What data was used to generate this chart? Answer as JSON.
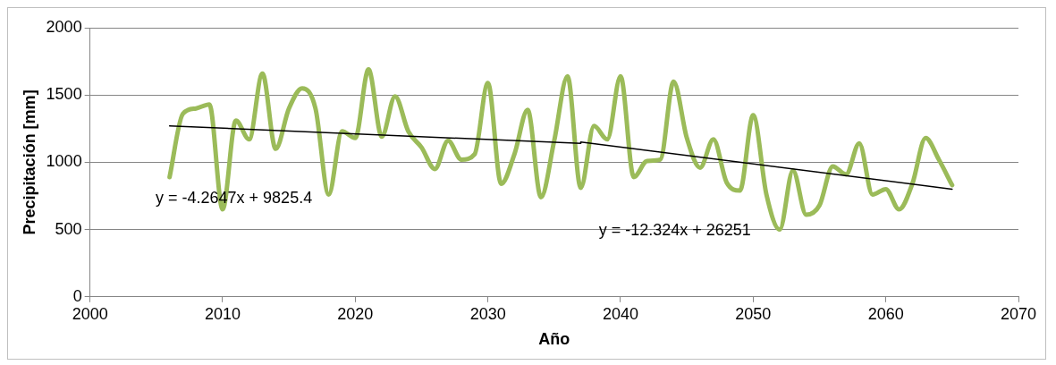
{
  "chart_data": {
    "type": "line",
    "xlabel": "Año",
    "ylabel": "Precipitación [mm]",
    "x": [
      2006,
      2007,
      2008,
      2009,
      2010,
      2011,
      2012,
      2013,
      2014,
      2015,
      2016,
      2017,
      2018,
      2019,
      2020,
      2021,
      2022,
      2023,
      2024,
      2025,
      2026,
      2027,
      2028,
      2029,
      2030,
      2031,
      2032,
      2033,
      2034,
      2035,
      2036,
      2037,
      2038,
      2039,
      2040,
      2041,
      2042,
      2043,
      2044,
      2045,
      2046,
      2047,
      2048,
      2049,
      2050,
      2051,
      2052,
      2053,
      2054,
      2055,
      2056,
      2057,
      2058,
      2059,
      2060,
      2061,
      2062,
      2063,
      2064,
      2065
    ],
    "series": [
      {
        "color": "#9bbb59",
        "values": [
          890,
          1360,
          1400,
          1430,
          650,
          1310,
          1170,
          1660,
          1100,
          1400,
          1550,
          1400,
          760,
          1230,
          1180,
          1690,
          1190,
          1490,
          1230,
          1110,
          950,
          1160,
          1020,
          1060,
          1590,
          840,
          1060,
          1390,
          740,
          1160,
          1640,
          810,
          1270,
          1170,
          1640,
          890,
          1010,
          1020,
          1600,
          1180,
          960,
          1170,
          850,
          790,
          1350,
          760,
          500,
          940,
          610,
          680,
          970,
          910,
          1140,
          760,
          800,
          650,
          840,
          1180,
          1020,
          830
        ]
      },
      {
        "type": "line",
        "color": "#000000",
        "x": [
          2006,
          2037,
          2037,
          2065
        ],
        "values": [
          1270,
          1140,
          1150,
          800
        ]
      }
    ],
    "xlim": [
      2000,
      2070
    ],
    "xticks": [
      2000,
      2010,
      2020,
      2030,
      2040,
      2050,
      2060,
      2070
    ],
    "ylim": [
      0,
      2000
    ],
    "yticks": [
      0,
      500,
      1000,
      1500,
      2000
    ],
    "grid": "y",
    "legend": false,
    "marker": "none",
    "line_style": "solid",
    "annotations": [
      "y = -4.2647x + 9825.4",
      "y = -12.324x + 26251"
    ]
  }
}
